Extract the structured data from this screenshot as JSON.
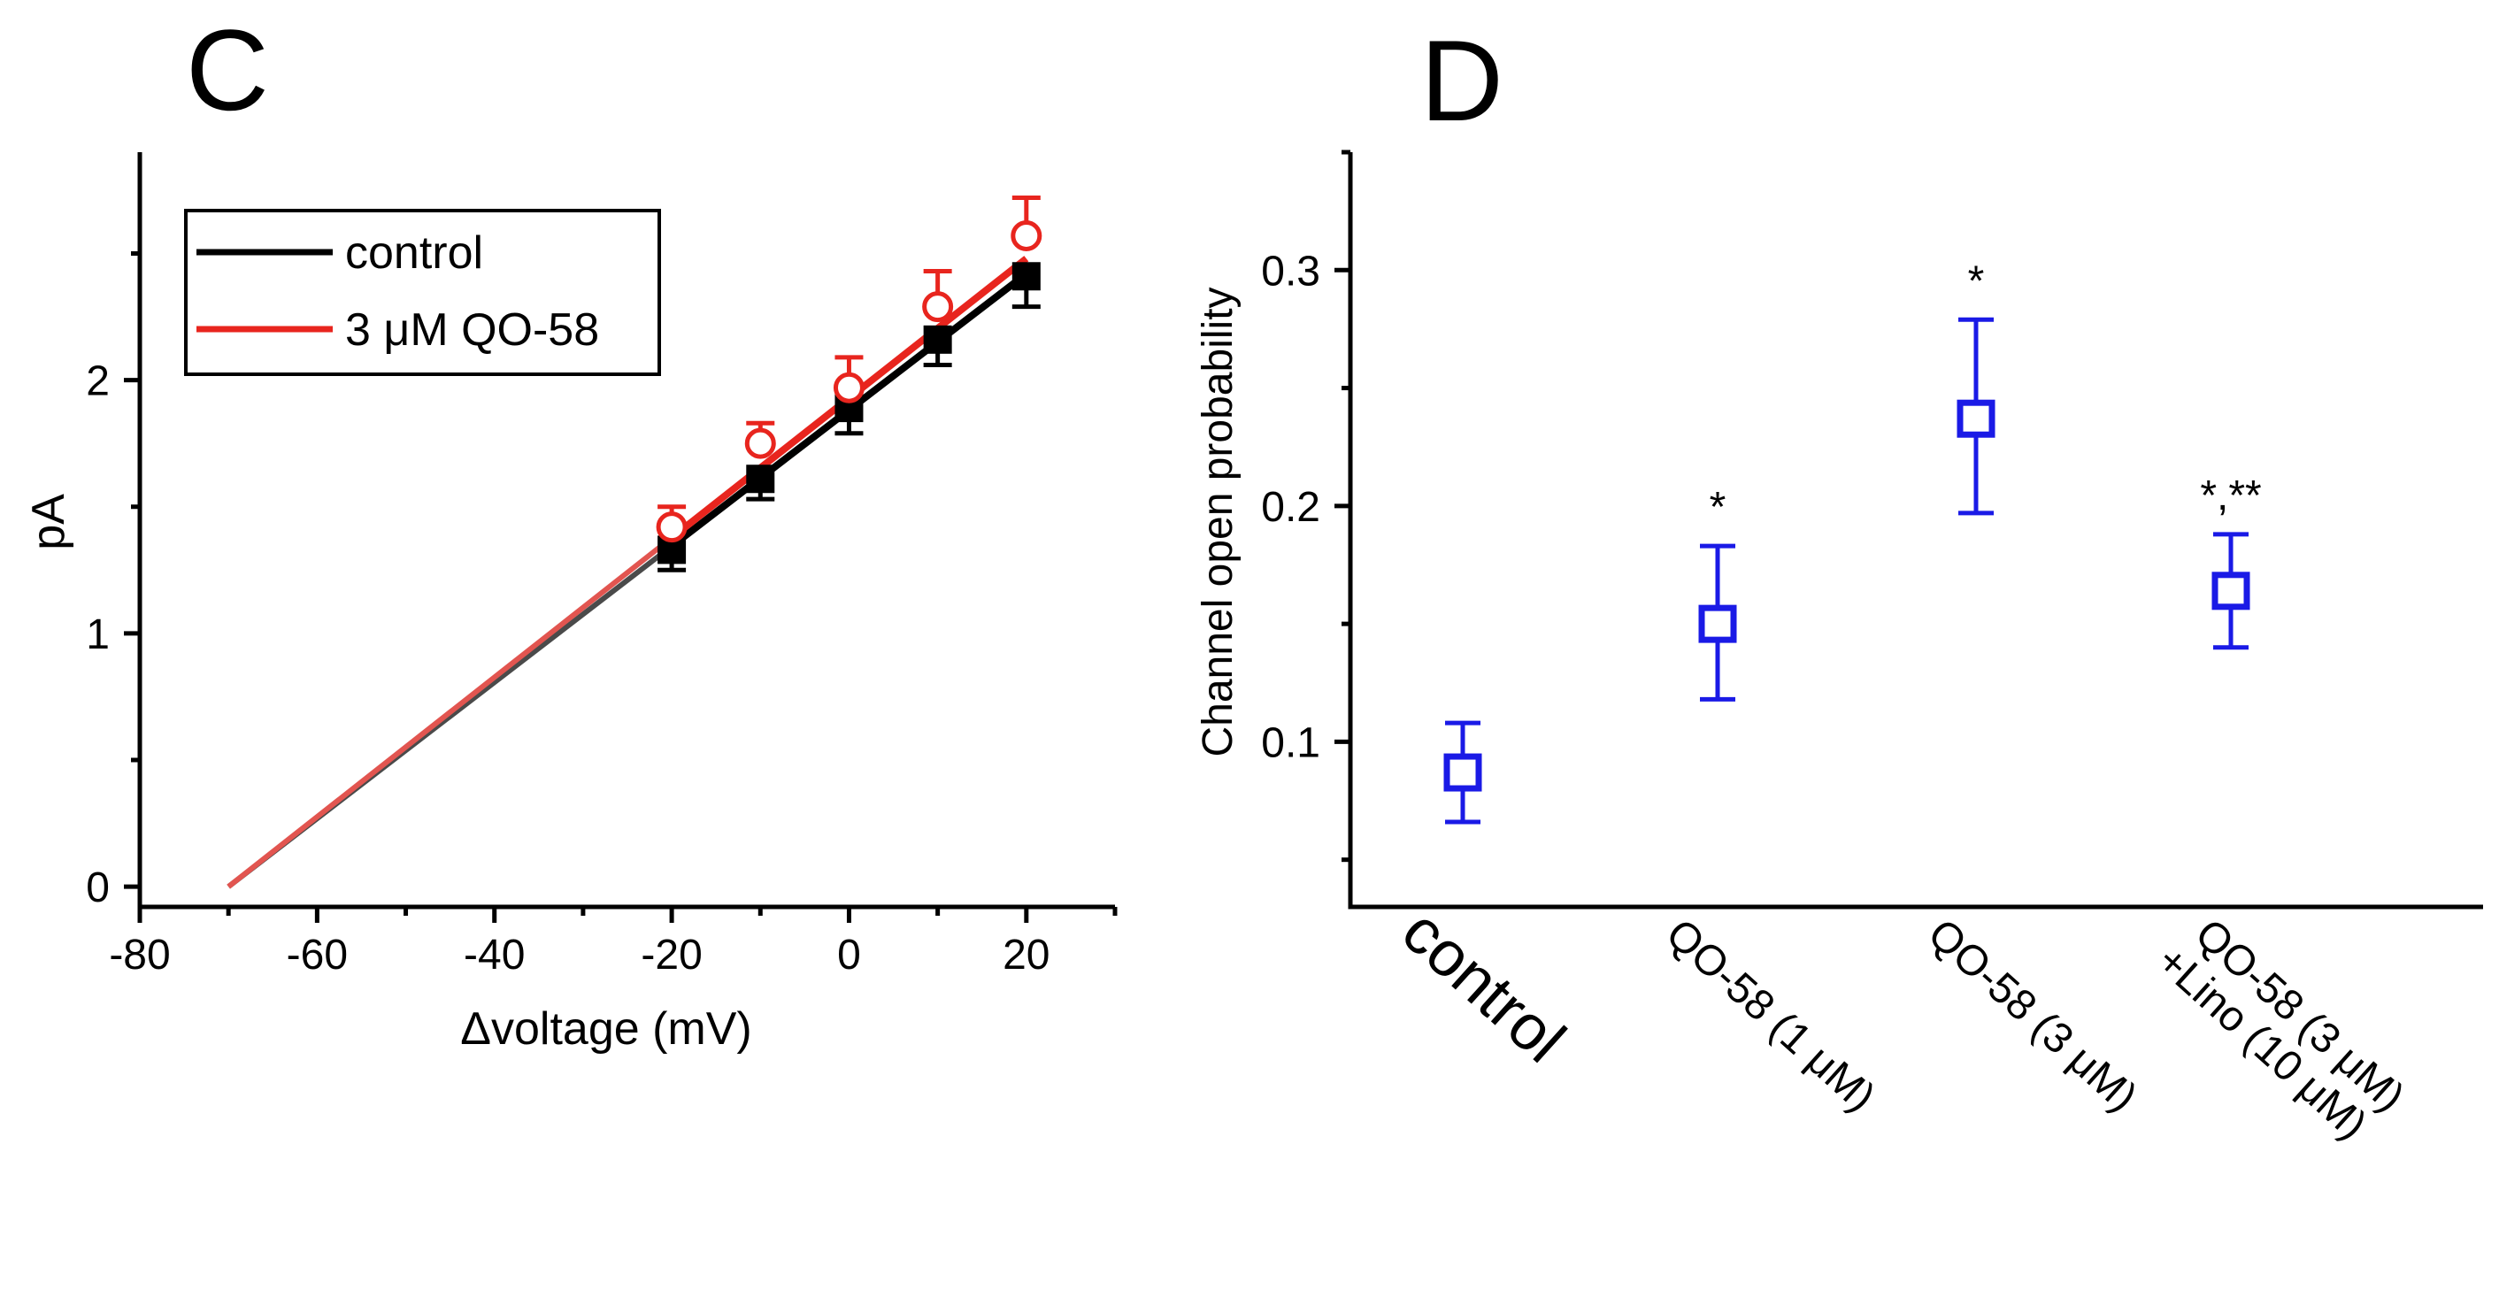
{
  "panel_labels": {
    "c": "C",
    "d": "D"
  },
  "chart_data": [
    {
      "id": "C",
      "type": "scatter",
      "title": "",
      "xlabel": "Δvoltage (mV)",
      "ylabel": "pA",
      "xlim": [
        -80,
        30
      ],
      "ylim": [
        -0.08,
        2.9
      ],
      "xticks": [
        -80,
        -60,
        -40,
        -20,
        0,
        20
      ],
      "yticks": [
        0,
        1,
        2
      ],
      "legend_position": "top-left",
      "series": [
        {
          "name": "control",
          "color": "#000000",
          "marker": "filled-square",
          "x": [
            -20,
            -10,
            0,
            10,
            20
          ],
          "y": [
            1.33,
            1.61,
            1.89,
            2.16,
            2.41
          ],
          "err": [
            0.08,
            0.08,
            0.1,
            0.1,
            0.12
          ],
          "fit": {
            "x": [
              -70,
              20
            ],
            "y": [
              0,
              2.42
            ]
          }
        },
        {
          "name": "3 μM QO-58",
          "color": "#e8251e",
          "marker": "open-circle",
          "x": [
            -20,
            -10,
            0,
            10,
            20
          ],
          "y": [
            1.42,
            1.75,
            1.97,
            2.29,
            2.57
          ],
          "err": [
            0.08,
            0.08,
            0.12,
            0.14,
            0.15
          ],
          "fit": {
            "x": [
              -70,
              20
            ],
            "y": [
              0,
              2.48
            ]
          }
        }
      ]
    },
    {
      "id": "D",
      "type": "scatter",
      "title": "",
      "xlabel": "",
      "ylabel": "Channel open probability",
      "ylim": [
        0.03,
        0.35
      ],
      "yticks": [
        0.1,
        0.2,
        0.3
      ],
      "categories": [
        "control",
        "QO-58 (1 μM)",
        "QO-58 (3 μM)",
        "QO-58 (3 μM)\n+Lino (10 μM)"
      ],
      "series": [
        {
          "name": "Channel open probability",
          "color": "#1a1ae6",
          "marker": "open-square",
          "values": [
            0.087,
            0.15,
            0.237,
            0.164
          ],
          "err_low": [
            0.066,
            0.118,
            0.197,
            0.14
          ],
          "err_high": [
            0.108,
            0.183,
            0.279,
            0.188
          ],
          "annotations": [
            "",
            "*",
            "*",
            "*,**"
          ]
        }
      ]
    }
  ]
}
